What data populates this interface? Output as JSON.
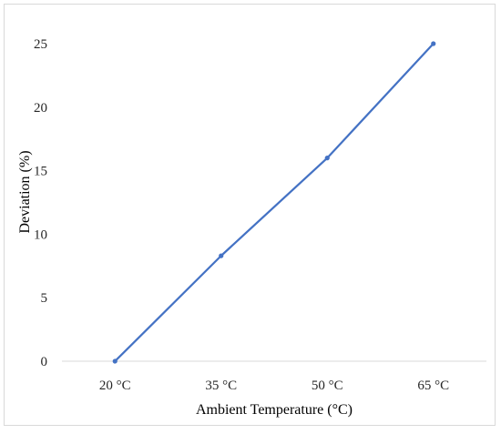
{
  "chart_data": {
    "type": "line",
    "categories": [
      "20 °C",
      "35 °C",
      "50 °C",
      "65 °C"
    ],
    "series": [
      {
        "values": [
          0,
          8.3,
          16,
          25
        ]
      }
    ],
    "xlabel": "Ambient Temperature (°C)",
    "ylabel": "Deviation  (%)",
    "ylim": [
      0,
      25
    ],
    "yticks": [
      0,
      5,
      10,
      15,
      20,
      25
    ],
    "grid": false,
    "legend": "none",
    "colors": {
      "series": "#4472c4",
      "axis": "#d9d9d9"
    }
  }
}
